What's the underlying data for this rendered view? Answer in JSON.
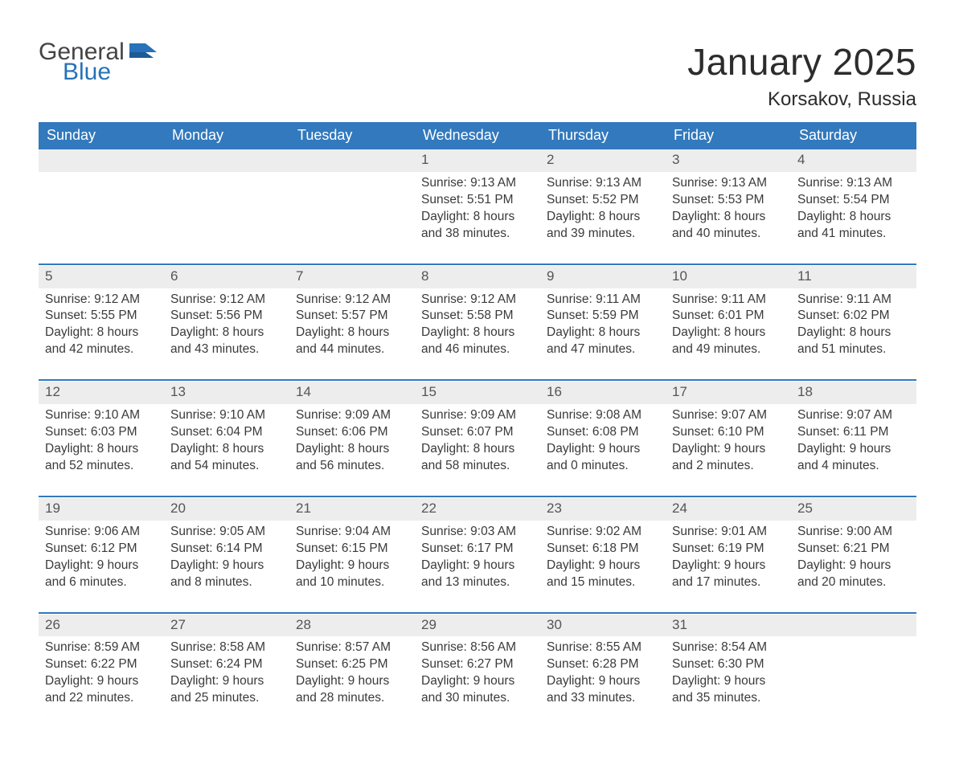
{
  "logo": {
    "general": "General",
    "blue": "Blue"
  },
  "title": "January 2025",
  "location": "Korsakov, Russia",
  "colors": {
    "header_bg": "#3279bd",
    "header_fg": "#ffffff",
    "daynum_bg": "#ededed",
    "sep": "#3279bd",
    "text": "#3a3a3a",
    "logo_gray": "#444444",
    "logo_blue": "#2772b8",
    "background": "#ffffff"
  },
  "weekdays": [
    "Sunday",
    "Monday",
    "Tuesday",
    "Wednesday",
    "Thursday",
    "Friday",
    "Saturday"
  ],
  "weeks": [
    [
      null,
      null,
      null,
      {
        "n": "1",
        "sr": "Sunrise: 9:13 AM",
        "ss": "Sunset: 5:51 PM",
        "d1": "Daylight: 8 hours",
        "d2": "and 38 minutes."
      },
      {
        "n": "2",
        "sr": "Sunrise: 9:13 AM",
        "ss": "Sunset: 5:52 PM",
        "d1": "Daylight: 8 hours",
        "d2": "and 39 minutes."
      },
      {
        "n": "3",
        "sr": "Sunrise: 9:13 AM",
        "ss": "Sunset: 5:53 PM",
        "d1": "Daylight: 8 hours",
        "d2": "and 40 minutes."
      },
      {
        "n": "4",
        "sr": "Sunrise: 9:13 AM",
        "ss": "Sunset: 5:54 PM",
        "d1": "Daylight: 8 hours",
        "d2": "and 41 minutes."
      }
    ],
    [
      {
        "n": "5",
        "sr": "Sunrise: 9:12 AM",
        "ss": "Sunset: 5:55 PM",
        "d1": "Daylight: 8 hours",
        "d2": "and 42 minutes."
      },
      {
        "n": "6",
        "sr": "Sunrise: 9:12 AM",
        "ss": "Sunset: 5:56 PM",
        "d1": "Daylight: 8 hours",
        "d2": "and 43 minutes."
      },
      {
        "n": "7",
        "sr": "Sunrise: 9:12 AM",
        "ss": "Sunset: 5:57 PM",
        "d1": "Daylight: 8 hours",
        "d2": "and 44 minutes."
      },
      {
        "n": "8",
        "sr": "Sunrise: 9:12 AM",
        "ss": "Sunset: 5:58 PM",
        "d1": "Daylight: 8 hours",
        "d2": "and 46 minutes."
      },
      {
        "n": "9",
        "sr": "Sunrise: 9:11 AM",
        "ss": "Sunset: 5:59 PM",
        "d1": "Daylight: 8 hours",
        "d2": "and 47 minutes."
      },
      {
        "n": "10",
        "sr": "Sunrise: 9:11 AM",
        "ss": "Sunset: 6:01 PM",
        "d1": "Daylight: 8 hours",
        "d2": "and 49 minutes."
      },
      {
        "n": "11",
        "sr": "Sunrise: 9:11 AM",
        "ss": "Sunset: 6:02 PM",
        "d1": "Daylight: 8 hours",
        "d2": "and 51 minutes."
      }
    ],
    [
      {
        "n": "12",
        "sr": "Sunrise: 9:10 AM",
        "ss": "Sunset: 6:03 PM",
        "d1": "Daylight: 8 hours",
        "d2": "and 52 minutes."
      },
      {
        "n": "13",
        "sr": "Sunrise: 9:10 AM",
        "ss": "Sunset: 6:04 PM",
        "d1": "Daylight: 8 hours",
        "d2": "and 54 minutes."
      },
      {
        "n": "14",
        "sr": "Sunrise: 9:09 AM",
        "ss": "Sunset: 6:06 PM",
        "d1": "Daylight: 8 hours",
        "d2": "and 56 minutes."
      },
      {
        "n": "15",
        "sr": "Sunrise: 9:09 AM",
        "ss": "Sunset: 6:07 PM",
        "d1": "Daylight: 8 hours",
        "d2": "and 58 minutes."
      },
      {
        "n": "16",
        "sr": "Sunrise: 9:08 AM",
        "ss": "Sunset: 6:08 PM",
        "d1": "Daylight: 9 hours",
        "d2": "and 0 minutes."
      },
      {
        "n": "17",
        "sr": "Sunrise: 9:07 AM",
        "ss": "Sunset: 6:10 PM",
        "d1": "Daylight: 9 hours",
        "d2": "and 2 minutes."
      },
      {
        "n": "18",
        "sr": "Sunrise: 9:07 AM",
        "ss": "Sunset: 6:11 PM",
        "d1": "Daylight: 9 hours",
        "d2": "and 4 minutes."
      }
    ],
    [
      {
        "n": "19",
        "sr": "Sunrise: 9:06 AM",
        "ss": "Sunset: 6:12 PM",
        "d1": "Daylight: 9 hours",
        "d2": "and 6 minutes."
      },
      {
        "n": "20",
        "sr": "Sunrise: 9:05 AM",
        "ss": "Sunset: 6:14 PM",
        "d1": "Daylight: 9 hours",
        "d2": "and 8 minutes."
      },
      {
        "n": "21",
        "sr": "Sunrise: 9:04 AM",
        "ss": "Sunset: 6:15 PM",
        "d1": "Daylight: 9 hours",
        "d2": "and 10 minutes."
      },
      {
        "n": "22",
        "sr": "Sunrise: 9:03 AM",
        "ss": "Sunset: 6:17 PM",
        "d1": "Daylight: 9 hours",
        "d2": "and 13 minutes."
      },
      {
        "n": "23",
        "sr": "Sunrise: 9:02 AM",
        "ss": "Sunset: 6:18 PM",
        "d1": "Daylight: 9 hours",
        "d2": "and 15 minutes."
      },
      {
        "n": "24",
        "sr": "Sunrise: 9:01 AM",
        "ss": "Sunset: 6:19 PM",
        "d1": "Daylight: 9 hours",
        "d2": "and 17 minutes."
      },
      {
        "n": "25",
        "sr": "Sunrise: 9:00 AM",
        "ss": "Sunset: 6:21 PM",
        "d1": "Daylight: 9 hours",
        "d2": "and 20 minutes."
      }
    ],
    [
      {
        "n": "26",
        "sr": "Sunrise: 8:59 AM",
        "ss": "Sunset: 6:22 PM",
        "d1": "Daylight: 9 hours",
        "d2": "and 22 minutes."
      },
      {
        "n": "27",
        "sr": "Sunrise: 8:58 AM",
        "ss": "Sunset: 6:24 PM",
        "d1": "Daylight: 9 hours",
        "d2": "and 25 minutes."
      },
      {
        "n": "28",
        "sr": "Sunrise: 8:57 AM",
        "ss": "Sunset: 6:25 PM",
        "d1": "Daylight: 9 hours",
        "d2": "and 28 minutes."
      },
      {
        "n": "29",
        "sr": "Sunrise: 8:56 AM",
        "ss": "Sunset: 6:27 PM",
        "d1": "Daylight: 9 hours",
        "d2": "and 30 minutes."
      },
      {
        "n": "30",
        "sr": "Sunrise: 8:55 AM",
        "ss": "Sunset: 6:28 PM",
        "d1": "Daylight: 9 hours",
        "d2": "and 33 minutes."
      },
      {
        "n": "31",
        "sr": "Sunrise: 8:54 AM",
        "ss": "Sunset: 6:30 PM",
        "d1": "Daylight: 9 hours",
        "d2": "and 35 minutes."
      },
      null
    ]
  ]
}
